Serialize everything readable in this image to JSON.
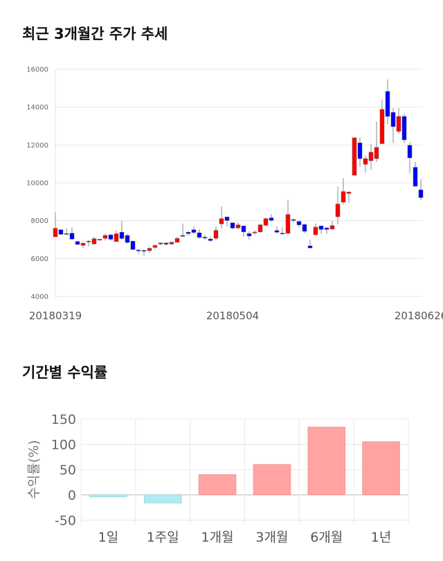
{
  "charts_titles": {
    "price": "최근 3개월간 주가 추세",
    "returns": "기간별 수익률"
  },
  "chart_data": [
    {
      "type": "candlestick",
      "title": "최근 3개월간 주가 추세",
      "ylim": [
        4000,
        16000
      ],
      "yticks": [
        "4000",
        "6000",
        "8000",
        "10000",
        "12000",
        "14000",
        "16000"
      ],
      "xlabels": [
        "20180319",
        "20180504",
        "20180626"
      ],
      "xlabel_index": [
        0,
        32,
        66
      ],
      "grid": true,
      "colors": {
        "up": "#ff0000",
        "down": "#0000ff"
      },
      "ohlc": [
        [
          7150,
          8450,
          7150,
          7600
        ],
        [
          7520,
          7550,
          7250,
          7280
        ],
        [
          7300,
          7600,
          7300,
          7320
        ],
        [
          7340,
          7650,
          7000,
          7030
        ],
        [
          6900,
          6950,
          6700,
          6750
        ],
        [
          6700,
          6900,
          6550,
          6810
        ],
        [
          6900,
          6980,
          6650,
          6920
        ],
        [
          6770,
          7150,
          6750,
          7050
        ],
        [
          7000,
          7050,
          6950,
          7020
        ],
        [
          7070,
          7330,
          6950,
          7220
        ],
        [
          7250,
          7300,
          6950,
          7020
        ],
        [
          6900,
          7500,
          6900,
          7310
        ],
        [
          7390,
          8000,
          7000,
          7060
        ],
        [
          7220,
          7300,
          6800,
          6850
        ],
        [
          6920,
          6950,
          6450,
          6480
        ],
        [
          6450,
          6500,
          6250,
          6440
        ],
        [
          6430,
          6480,
          6150,
          6420
        ],
        [
          6420,
          6600,
          6300,
          6540
        ],
        [
          6590,
          6750,
          6500,
          6690
        ],
        [
          6770,
          6850,
          6700,
          6830
        ],
        [
          6820,
          6850,
          6680,
          6760
        ],
        [
          6770,
          6900,
          6700,
          6860
        ],
        [
          6860,
          7150,
          6850,
          7060
        ],
        [
          7220,
          7850,
          7150,
          7200
        ],
        [
          7390,
          7450,
          7200,
          7320
        ],
        [
          7520,
          7700,
          7300,
          7380
        ],
        [
          7360,
          7550,
          7050,
          7120
        ],
        [
          7130,
          7250,
          7000,
          7110
        ],
        [
          7030,
          7150,
          6900,
          6950
        ],
        [
          7070,
          7700,
          6950,
          7490
        ],
        [
          7830,
          8750,
          7600,
          8110
        ],
        [
          8200,
          8200,
          7700,
          8010
        ],
        [
          7890,
          7900,
          7550,
          7610
        ],
        [
          7620,
          7900,
          7550,
          7780
        ],
        [
          7720,
          7750,
          7150,
          7410
        ],
        [
          7320,
          7450,
          6990,
          7190
        ],
        [
          7390,
          7500,
          7250,
          7400
        ],
        [
          7410,
          7850,
          7370,
          7780
        ],
        [
          7760,
          8150,
          7700,
          8110
        ],
        [
          8150,
          8350,
          7950,
          8020
        ],
        [
          7480,
          7700,
          7330,
          7390
        ],
        [
          7340,
          7650,
          7300,
          7330
        ],
        [
          7330,
          9100,
          7330,
          8330
        ],
        [
          8060,
          8100,
          7900,
          8040
        ],
        [
          7960,
          8000,
          7650,
          7780
        ],
        [
          7800,
          7850,
          7350,
          7440
        ],
        [
          6670,
          7000,
          6560,
          6560
        ],
        [
          7260,
          7850,
          7200,
          7660
        ],
        [
          7720,
          7750,
          7320,
          7540
        ],
        [
          7620,
          7650,
          7300,
          7540
        ],
        [
          7560,
          8000,
          7500,
          7740
        ],
        [
          8210,
          9800,
          7800,
          8880
        ],
        [
          8980,
          10250,
          8850,
          9540
        ],
        [
          9440,
          9550,
          8950,
          9510
        ],
        [
          10400,
          12400,
          10400,
          12380
        ],
        [
          12110,
          12400,
          10850,
          11280
        ],
        [
          10980,
          11450,
          10550,
          11280
        ],
        [
          11170,
          12050,
          10700,
          11620
        ],
        [
          11280,
          13240,
          11100,
          11870
        ],
        [
          12070,
          14400,
          12050,
          13880
        ],
        [
          14830,
          15460,
          13100,
          13510
        ],
        [
          13720,
          13950,
          12100,
          12970
        ],
        [
          12720,
          13950,
          12600,
          13510
        ],
        [
          13510,
          13650,
          12100,
          12270
        ],
        [
          11980,
          12150,
          10500,
          11320
        ],
        [
          10820,
          11100,
          9820,
          9820
        ],
        [
          9630,
          10200,
          9100,
          9220
        ]
      ]
    },
    {
      "type": "bar",
      "title": "기간별 수익률",
      "ylabel": "수익률(%)",
      "ylim": [
        -50,
        150
      ],
      "yticks": [
        "-50",
        "0",
        "50",
        "100",
        "150"
      ],
      "categories": [
        "1일",
        "1주일",
        "1개월",
        "3개월",
        "6개월",
        "1년"
      ],
      "values": [
        -4,
        -16,
        40,
        60,
        134,
        105
      ],
      "colors": {
        "positive": "#ffa3a3",
        "negative": "#b3eaf2"
      },
      "grid": true
    }
  ]
}
